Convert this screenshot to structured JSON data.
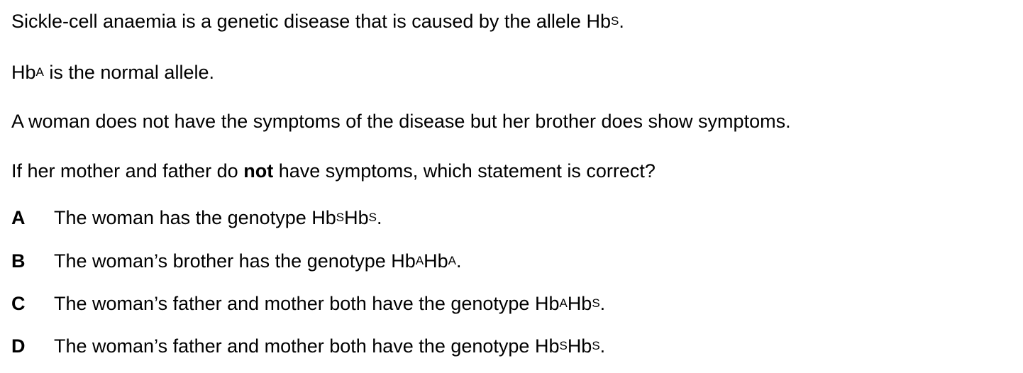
{
  "stem": {
    "line1": {
      "text": "Sickle-cell anaemia is a genetic disease that is caused by the allele Hb",
      "sup": "S",
      "end": "."
    },
    "line2": {
      "pre": "Hb",
      "sup": "A",
      "text": " is the normal allele."
    },
    "line3": "A woman does not have the symptoms of the disease but her brother does show symptoms.",
    "question": {
      "pre": "If her mother and father do ",
      "bold": "not",
      "post": " have symptoms, which statement is correct?"
    }
  },
  "options": [
    {
      "letter": "A",
      "text": "The woman has the genotype Hb",
      "sup1": "S",
      "mid": "Hb",
      "sup2": "S",
      "end": "."
    },
    {
      "letter": "B",
      "text": "The woman’s brother has the genotype Hb",
      "sup1": "A",
      "mid": "Hb",
      "sup2": "A",
      "end": "."
    },
    {
      "letter": "C",
      "text": "The woman’s father and mother both have the genotype Hb",
      "sup1": "A",
      "mid": "Hb",
      "sup2": "S",
      "end": "."
    },
    {
      "letter": "D",
      "text": "The woman’s father and mother both have the genotype Hb",
      "sup1": "S",
      "mid": "Hb",
      "sup2": "S",
      "end": "."
    }
  ]
}
